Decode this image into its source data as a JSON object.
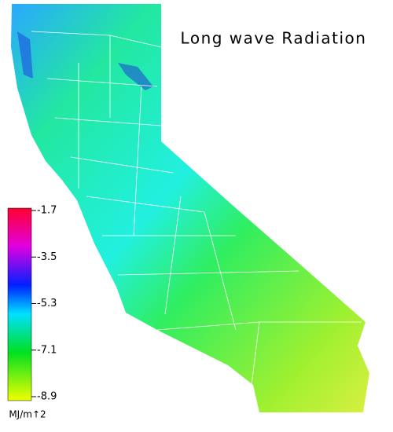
{
  "title": "Long wave Radiation",
  "colorbar": {
    "range": [
      -8.9,
      -1.7
    ],
    "ticks": [
      -1.7,
      -3.5,
      -5.3,
      -7.1,
      -8.9
    ],
    "unit_label": "MJ/m↑2"
  }
}
